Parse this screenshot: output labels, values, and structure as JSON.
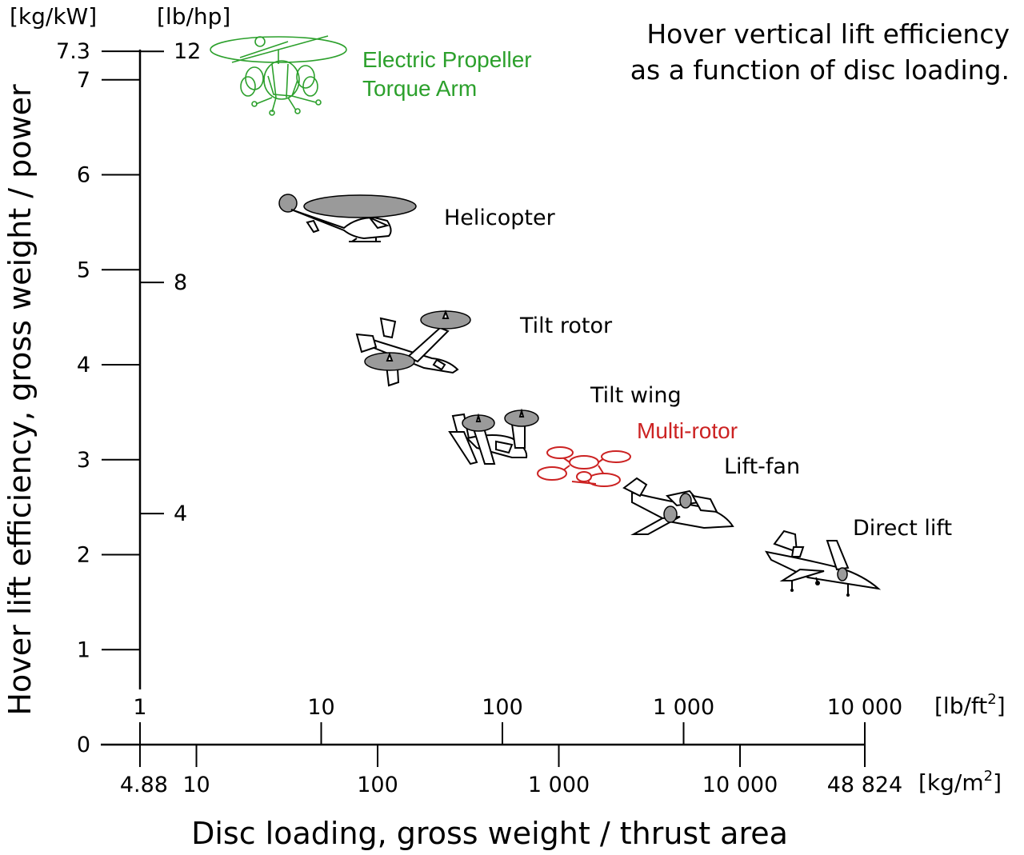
{
  "chart_data": {
    "type": "scatter",
    "title_lines": [
      "Hover vertical lift efficiency",
      "as a function of disc loading."
    ],
    "xlabel": "Disc loading, gross weight / thrust area",
    "ylabel": "Hover lift efficiency, gross weight / power",
    "x_scale": "log",
    "grid": false,
    "y_axis": {
      "primary_unit": "[kg/kW]",
      "primary_range": [
        0,
        7.3
      ],
      "primary_ticks": [
        {
          "v": 0,
          "label": "0"
        },
        {
          "v": 1,
          "label": "1"
        },
        {
          "v": 2,
          "label": "2"
        },
        {
          "v": 3,
          "label": "3"
        },
        {
          "v": 4,
          "label": "4"
        },
        {
          "v": 5,
          "label": "5"
        },
        {
          "v": 6,
          "label": "6"
        },
        {
          "v": 7,
          "label": "7"
        },
        {
          "v": 7.3,
          "label": "7.3"
        }
      ],
      "secondary_unit": "[lb/hp]",
      "secondary_ticks": [
        {
          "v": 4,
          "label": "4"
        },
        {
          "v": 8,
          "label": "8"
        },
        {
          "v": 12,
          "label": "12"
        }
      ]
    },
    "x_axis": {
      "upper_unit_base": "[lb/ft",
      "upper_unit_sup": "2",
      "upper_unit_end": "]",
      "upper_range": [
        1,
        10000
      ],
      "upper_ticks": [
        {
          "v": 1,
          "label": "1"
        },
        {
          "v": 10,
          "label": "10"
        },
        {
          "v": 100,
          "label": "100"
        },
        {
          "v": 1000,
          "label": "1 000"
        },
        {
          "v": 10000,
          "label": "10 000"
        }
      ],
      "lower_unit_base": "[kg/m",
      "lower_unit_sup": "2",
      "lower_unit_end": "]",
      "lower_range": [
        4.88,
        48824
      ],
      "lower_ticks": [
        {
          "v": 4.88,
          "label": "4.88"
        },
        {
          "v": 10,
          "label": "10"
        },
        {
          "v": 100,
          "label": "100"
        },
        {
          "v": 1000,
          "label": "1 000"
        },
        {
          "v": 10000,
          "label": "10 000"
        },
        {
          "v": 48824,
          "label": "48 824"
        }
      ]
    },
    "categories": [
      {
        "name": "Electric Propeller",
        "name2": "Torque Arm",
        "disc_loading_kg_m2": 10,
        "lift_efficiency_kg_kw": 7.0,
        "color": "#2ca02c",
        "icon": "eprop-icon"
      },
      {
        "name": "Helicopter",
        "disc_loading_kg_m2": 30,
        "lift_efficiency_kg_kw": 5.6,
        "color": "#000000",
        "icon": "helicopter-icon"
      },
      {
        "name": "Tilt rotor",
        "disc_loading_kg_m2": 120,
        "lift_efficiency_kg_kw": 4.3,
        "color": "#000000",
        "icon": "tilt-rotor-icon"
      },
      {
        "name": "Tilt wing",
        "disc_loading_kg_m2": 450,
        "lift_efficiency_kg_kw": 3.2,
        "color": "#000000",
        "icon": "tilt-wing-icon"
      },
      {
        "name": "Multi-rotor",
        "disc_loading_kg_m2": 1000,
        "lift_efficiency_kg_kw": 2.9,
        "color": "#cc2222",
        "icon": "multi-rotor-icon"
      },
      {
        "name": "Lift-fan",
        "disc_loading_kg_m2": 3500,
        "lift_efficiency_kg_kw": 2.5,
        "color": "#000000",
        "icon": "lift-fan-icon"
      },
      {
        "name": "Direct lift",
        "disc_loading_kg_m2": 20000,
        "lift_efficiency_kg_kw": 1.9,
        "color": "#000000",
        "icon": "direct-lift-icon"
      }
    ]
  }
}
